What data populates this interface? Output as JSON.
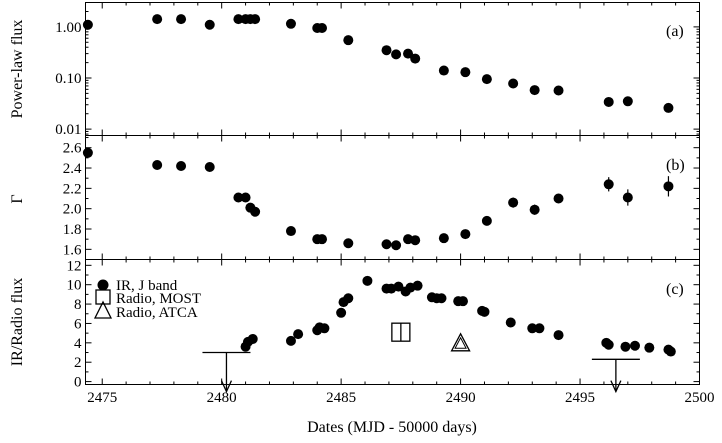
{
  "chart_data": [
    {
      "type": "scatter",
      "panel_tag": "(a)",
      "ylabel": "Power-law flux",
      "yscale": "log",
      "ylim": [
        0.0075,
        3.0
      ],
      "yticks": [
        0.01,
        0.1,
        1.0
      ],
      "ytick_labels": [
        "0.01",
        "0.10",
        "1.00"
      ],
      "series": [
        {
          "x": [
            2474.4,
            2477.3,
            2478.3,
            2479.5,
            2480.7,
            2481.0,
            2481.2,
            2481.4,
            2482.9,
            2484.0,
            2484.2,
            2485.3,
            2486.9,
            2487.3,
            2487.8,
            2488.1,
            2489.3,
            2490.2,
            2491.1,
            2492.2,
            2493.1,
            2494.1,
            2496.2,
            2497.0,
            2498.7
          ],
          "y": [
            1.1,
            1.42,
            1.42,
            1.1,
            1.42,
            1.42,
            1.42,
            1.42,
            1.15,
            0.95,
            0.95,
            0.55,
            0.35,
            0.29,
            0.3,
            0.24,
            0.14,
            0.13,
            0.095,
            0.078,
            0.058,
            0.057,
            0.034,
            0.035,
            0.026
          ]
        }
      ]
    },
    {
      "type": "scatter",
      "panel_tag": "(b)",
      "ylabel": "Γ",
      "ylim": [
        1.5,
        2.72
      ],
      "yticks": [
        1.6,
        1.8,
        2.0,
        2.2,
        2.4,
        2.6
      ],
      "ytick_labels": [
        "1.6",
        "1.8",
        "2.0",
        "2.2",
        "2.4",
        "2.6"
      ],
      "series": [
        {
          "x": [
            2474.4,
            2477.3,
            2478.3,
            2479.5,
            2480.7,
            2481.0,
            2481.2,
            2481.4,
            2482.9,
            2484.0,
            2484.2,
            2485.3,
            2486.9,
            2487.3,
            2487.8,
            2488.1,
            2489.3,
            2490.2,
            2491.1,
            2492.2,
            2493.1,
            2494.1,
            2496.2,
            2497.0,
            2498.7
          ],
          "y": [
            2.55,
            2.43,
            2.42,
            2.41,
            2.11,
            2.11,
            2.01,
            1.97,
            1.78,
            1.7,
            1.7,
            1.66,
            1.65,
            1.64,
            1.7,
            1.69,
            1.71,
            1.75,
            1.88,
            2.06,
            1.99,
            2.1,
            2.24,
            2.11,
            2.22
          ],
          "err": [
            0,
            0,
            0,
            0,
            0,
            0,
            0,
            0,
            0,
            0,
            0,
            0,
            0,
            0,
            0,
            0,
            0,
            0,
            0,
            0.05,
            0.05,
            0,
            0.07,
            0.08,
            0.1
          ]
        }
      ]
    },
    {
      "type": "scatter",
      "panel_tag": "(c)",
      "ylabel": "IR/Radio flux",
      "xlabel": "Dates (MJD - 50000 days)",
      "xlim": [
        2474.3,
        2500.0
      ],
      "xticks": [
        2475,
        2480,
        2485,
        2490,
        2495,
        2500
      ],
      "xtick_labels": [
        "2475",
        "2480",
        "2485",
        "2490",
        "2495",
        "2500"
      ],
      "ylim": [
        -0.3,
        12.6
      ],
      "yticks": [
        0,
        2,
        4,
        6,
        8,
        10,
        12
      ],
      "ytick_labels": [
        "0",
        "2",
        "4",
        "6",
        "8",
        "10",
        "12"
      ],
      "legend": [
        "IR, J band",
        "Radio, MOST",
        "Radio, ATCA"
      ],
      "series": [
        {
          "name": "IR, J band",
          "marker": "circle",
          "x": [
            2481.0,
            2481.1,
            2481.3,
            2482.9,
            2483.2,
            2484.0,
            2484.1,
            2484.3,
            2485.0,
            2485.1,
            2485.3,
            2486.1,
            2486.9,
            2487.1,
            2487.4,
            2487.7,
            2487.9,
            2488.2,
            2488.8,
            2489.0,
            2489.2,
            2489.9,
            2490.1,
            2490.9,
            2491.0,
            2492.1,
            2493.0,
            2493.3,
            2494.1,
            2496.1,
            2496.2,
            2496.9,
            2497.3,
            2497.9,
            2498.7,
            2498.8
          ],
          "y": [
            3.6,
            4.1,
            4.4,
            4.2,
            4.9,
            5.3,
            5.6,
            5.5,
            7.1,
            8.2,
            8.6,
            10.4,
            9.6,
            9.6,
            9.8,
            9.3,
            9.7,
            9.9,
            8.7,
            8.6,
            8.6,
            8.3,
            8.3,
            7.3,
            7.2,
            6.1,
            5.5,
            5.5,
            4.8,
            4.0,
            3.8,
            3.6,
            3.7,
            3.5,
            3.3,
            3.1
          ]
        },
        {
          "name": "Radio, MOST",
          "marker": "square",
          "x": [
            2487.5
          ],
          "y": [
            5.1
          ]
        },
        {
          "name": "Radio, ATCA",
          "marker": "triangle",
          "x": [
            2490.0
          ],
          "y": [
            3.9
          ]
        },
        {
          "name": "upper limits",
          "marker": "arrow",
          "x": [
            2480.2,
            2496.5
          ],
          "y": [
            3.0,
            2.3
          ]
        }
      ]
    }
  ]
}
